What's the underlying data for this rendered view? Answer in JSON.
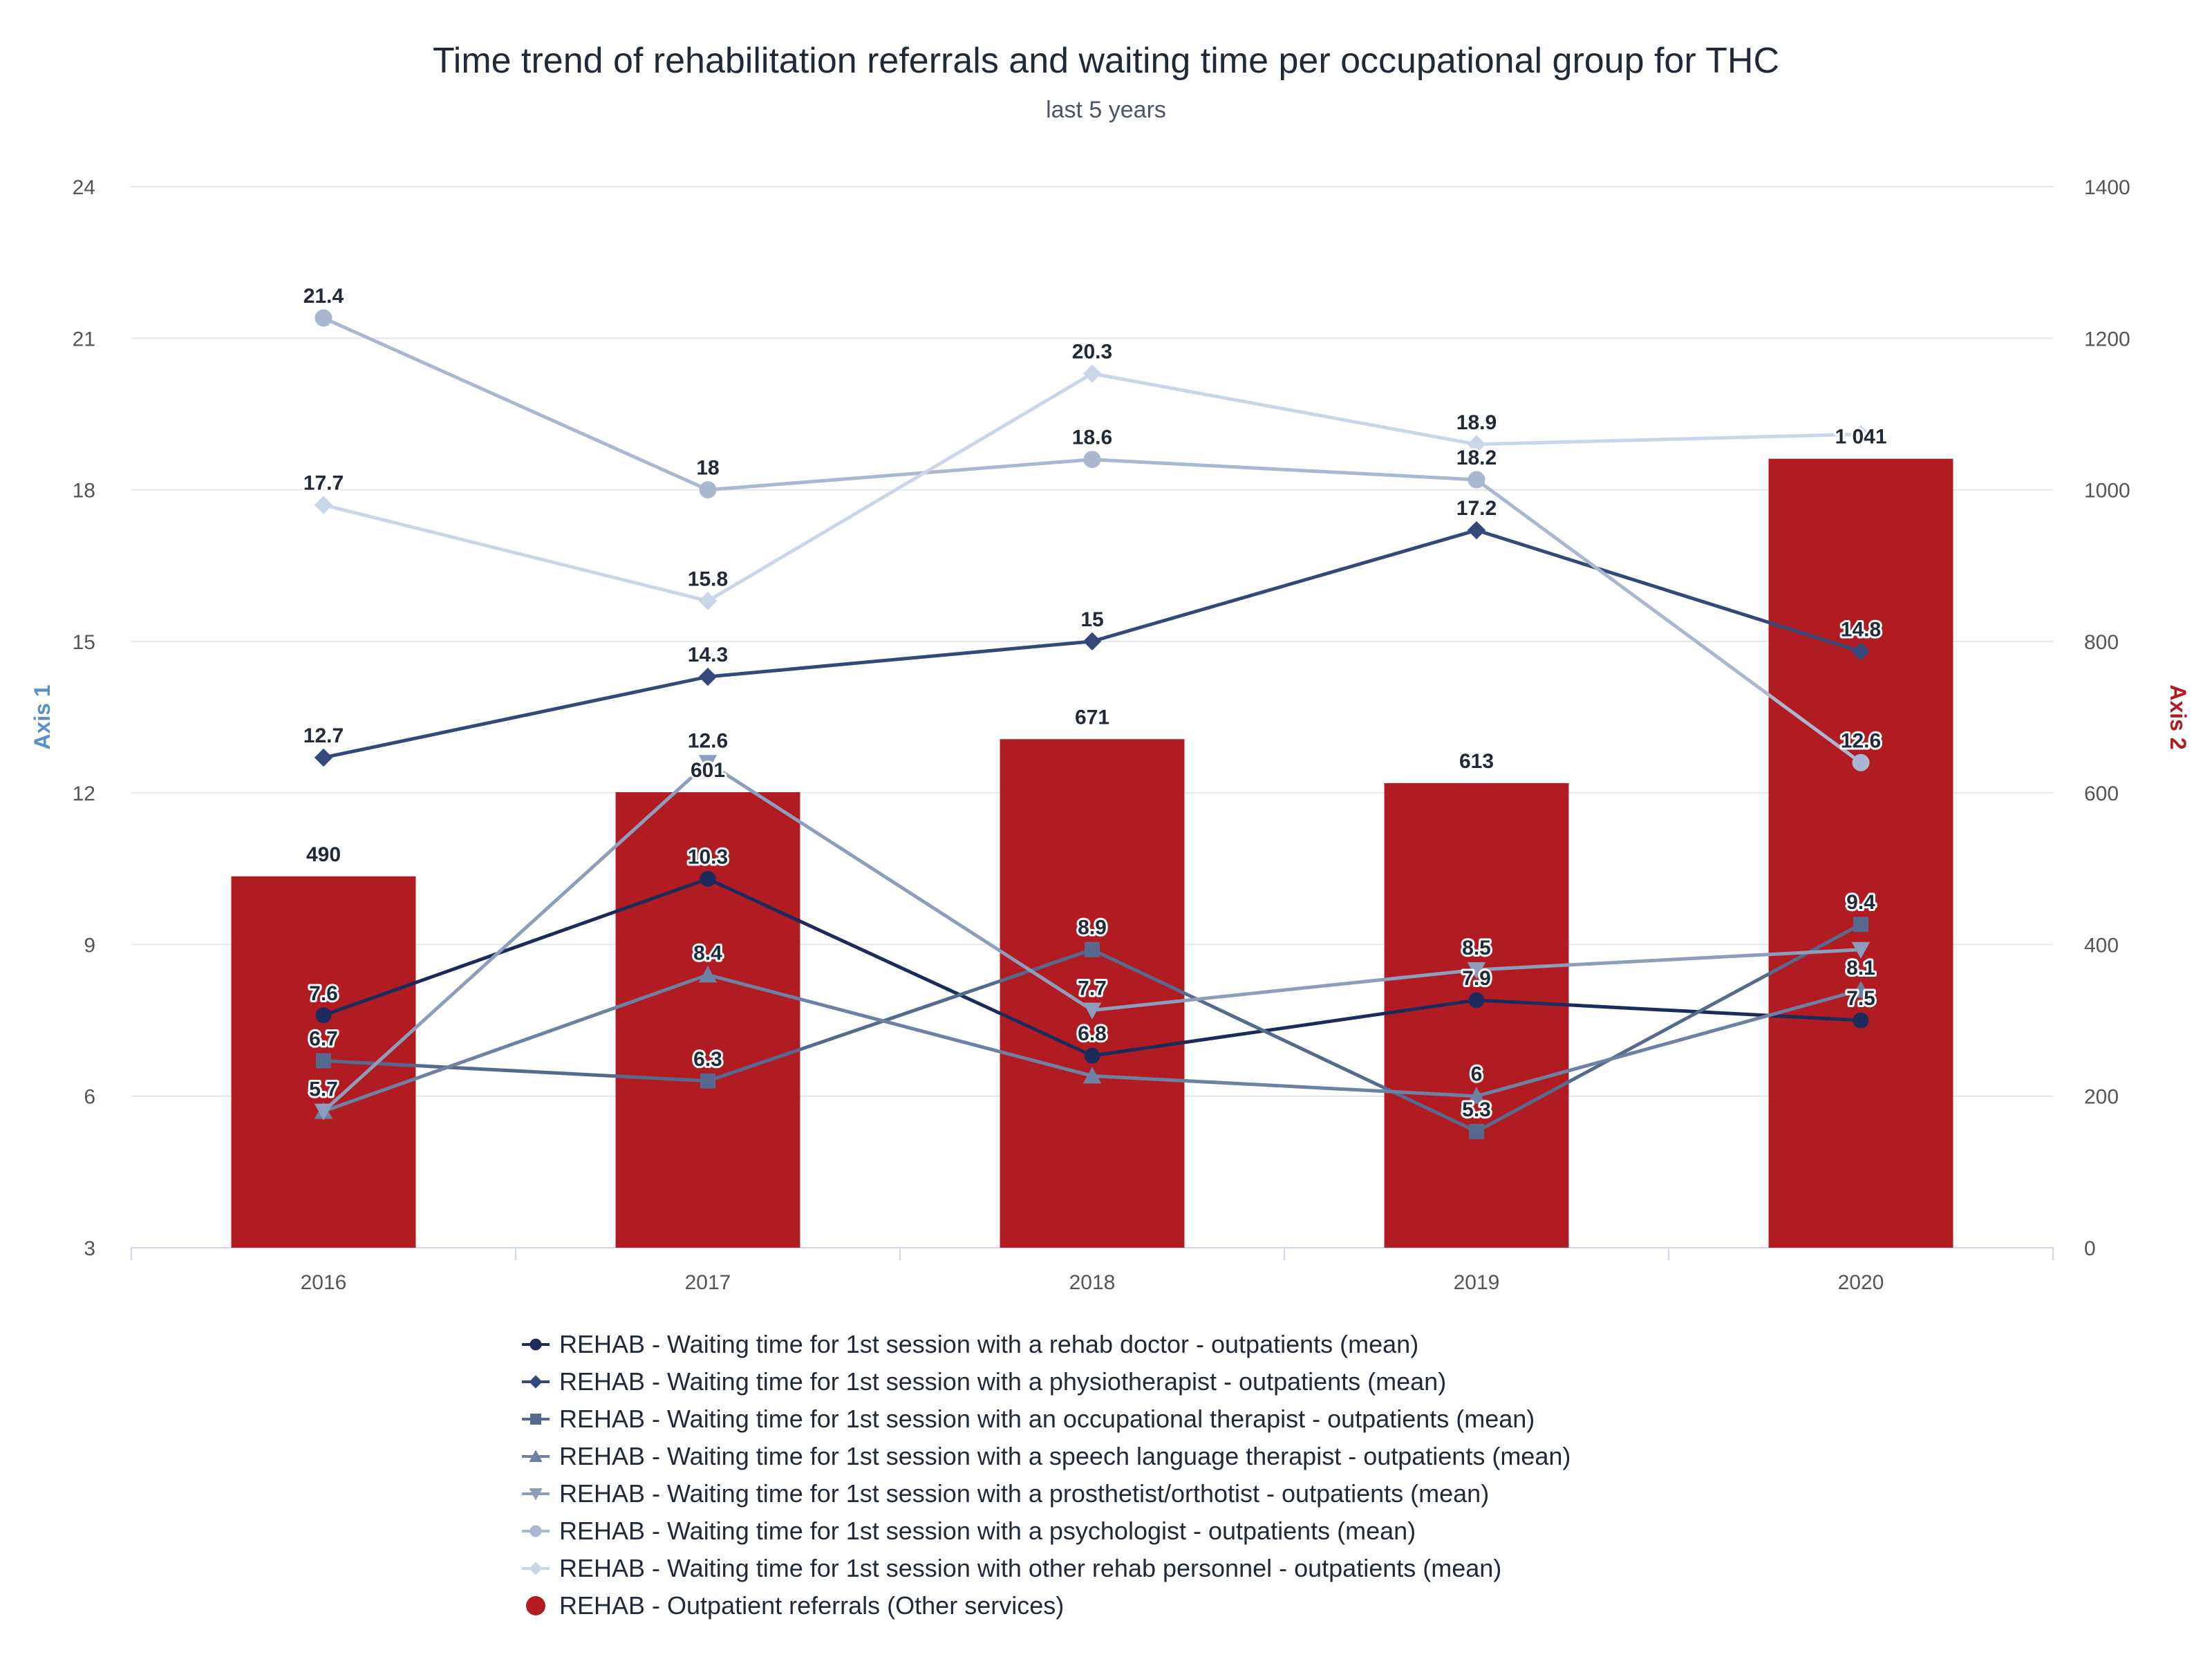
{
  "title": "Time trend of rehabilitation referrals and waiting time per occupational group for THC",
  "subtitle": "last 5 years",
  "chart_data": {
    "type": "bar",
    "categories": [
      "2016",
      "2017",
      "2018",
      "2019",
      "2020"
    ],
    "y_axis_left": {
      "title": "Axis 1",
      "range": [
        3,
        24
      ],
      "ticks": [
        "3",
        "6",
        "9",
        "12",
        "15",
        "18",
        "21",
        "24"
      ],
      "color": "#5b8fc7"
    },
    "y_axis_right": {
      "title": "Axis 2",
      "range": [
        0,
        1400
      ],
      "ticks": [
        "0",
        "200",
        "400",
        "600",
        "800",
        "1000",
        "1200",
        "1400"
      ],
      "color": "#b01c22"
    },
    "grid": true,
    "legend_position": "bottom",
    "bar_series": {
      "name": "REHAB - Outpatient referrals (Other services)",
      "axis": "right",
      "color": "#b01c22",
      "values": [
        490,
        601,
        671,
        613,
        1041
      ],
      "labels": [
        "490",
        "601",
        "671",
        "613",
        "1 041"
      ]
    },
    "series": [
      {
        "name": "REHAB - Waiting time for 1st session with a rehab doctor - outpatients (mean)",
        "axis": "left",
        "color": "#1d2b5c",
        "marker": "circle",
        "values": [
          7.6,
          10.3,
          6.8,
          7.9,
          7.5
        ]
      },
      {
        "name": "REHAB - Waiting time for 1st session with a physiotherapist - outpatients (mean)",
        "axis": "left",
        "color": "#34497a",
        "marker": "diamond",
        "values": [
          12.7,
          14.3,
          15,
          17.2,
          14.8
        ]
      },
      {
        "name": "REHAB - Waiting time for 1st session with an occupational therapist - outpatients (mean)",
        "axis": "left",
        "color": "#56698f",
        "marker": "square",
        "values": [
          6.7,
          6.3,
          8.9,
          5.3,
          9.4
        ]
      },
      {
        "name": "REHAB - Waiting time for 1st session with a speech language therapist - outpatients (mean)",
        "axis": "left",
        "color": "#6e80a3",
        "marker": "triangle",
        "values": [
          5.7,
          8.4,
          6.4,
          6,
          8.1
        ],
        "labels": [
          "5.7",
          "8.4",
          "",
          "6",
          "8.1"
        ]
      },
      {
        "name": "REHAB - Waiting time for 1st session with a prosthetist/orthotist - outpatients (mean)",
        "axis": "left",
        "color": "#8e9dbb",
        "marker": "triangle-down",
        "values": [
          5.7,
          12.6,
          7.7,
          8.5,
          8.9
        ],
        "labels": [
          "",
          "12.6",
          "7.7",
          "8.5",
          ""
        ]
      },
      {
        "name": "REHAB - Waiting time for 1st session with a psychologist - outpatients (mean)",
        "axis": "left",
        "color": "#a9b7cf",
        "marker": "circle",
        "values": [
          21.4,
          18,
          18.6,
          18.2,
          12.6
        ]
      },
      {
        "name": "REHAB - Waiting time for 1st session with other rehab personnel - outpatients (mean)",
        "axis": "left",
        "color": "#c9d6e8",
        "marker": "diamond",
        "values": [
          17.7,
          15.8,
          20.3,
          18.9,
          19.1
        ],
        "labels": [
          "17.7",
          "15.8",
          "20.3",
          "18.9",
          ""
        ]
      }
    ]
  },
  "legend": {
    "items": [
      {
        "label": "REHAB - Waiting time for 1st session with a rehab doctor - outpatients (mean)",
        "marker": "circle",
        "color": "#1d2b5c"
      },
      {
        "label": "REHAB - Waiting time for 1st session with a physiotherapist - outpatients (mean)",
        "marker": "diamond",
        "color": "#34497a"
      },
      {
        "label": "REHAB - Waiting time for 1st session with an occupational therapist - outpatients (mean)",
        "marker": "square",
        "color": "#56698f"
      },
      {
        "label": "REHAB - Waiting time for 1st session with a speech language therapist - outpatients (mean)",
        "marker": "triangle",
        "color": "#6e80a3"
      },
      {
        "label": "REHAB - Waiting time for 1st session with a prosthetist/orthotist - outpatients (mean)",
        "marker": "triangle-down",
        "color": "#8e9dbb"
      },
      {
        "label": "REHAB - Waiting time for 1st session with a psychologist - outpatients (mean)",
        "marker": "circle",
        "color": "#a9b7cf"
      },
      {
        "label": "REHAB - Waiting time for 1st session with other rehab personnel - outpatients (mean)",
        "marker": "diamond",
        "color": "#c9d6e8"
      },
      {
        "label": "REHAB - Outpatient referrals (Other services)",
        "marker": "big-circle",
        "color": "#b01c22"
      }
    ]
  }
}
